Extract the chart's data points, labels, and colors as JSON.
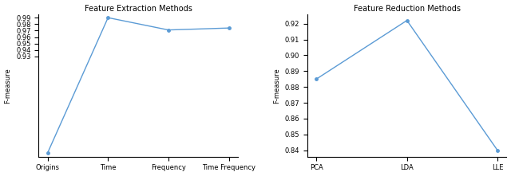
{
  "left": {
    "title": "Feature Extraction Methods",
    "x_labels": [
      "Origins",
      "Time",
      "Frequency",
      "Time Frequency"
    ],
    "y_values": [
      0.781,
      0.99,
      0.971,
      0.974
    ],
    "ylim": [
      0.775,
      0.9955
    ],
    "yticks": [
      0.93,
      0.94,
      0.95,
      0.96,
      0.97,
      0.98,
      0.99
    ],
    "ylabel": "F-measure",
    "line_color": "#5b9bd5",
    "marker": "o",
    "marker_size": 2.5
  },
  "right": {
    "title": "Feature Reduction Methods",
    "x_labels": [
      "PCA",
      "LDA",
      "LLE"
    ],
    "y_values": [
      0.885,
      0.922,
      0.84
    ],
    "ylim": [
      0.836,
      0.926
    ],
    "yticks": [
      0.84,
      0.85,
      0.86,
      0.87,
      0.88,
      0.89,
      0.9,
      0.91,
      0.92
    ],
    "ylabel": "F-measure",
    "line_color": "#5b9bd5",
    "marker": "o",
    "marker_size": 2.5
  }
}
